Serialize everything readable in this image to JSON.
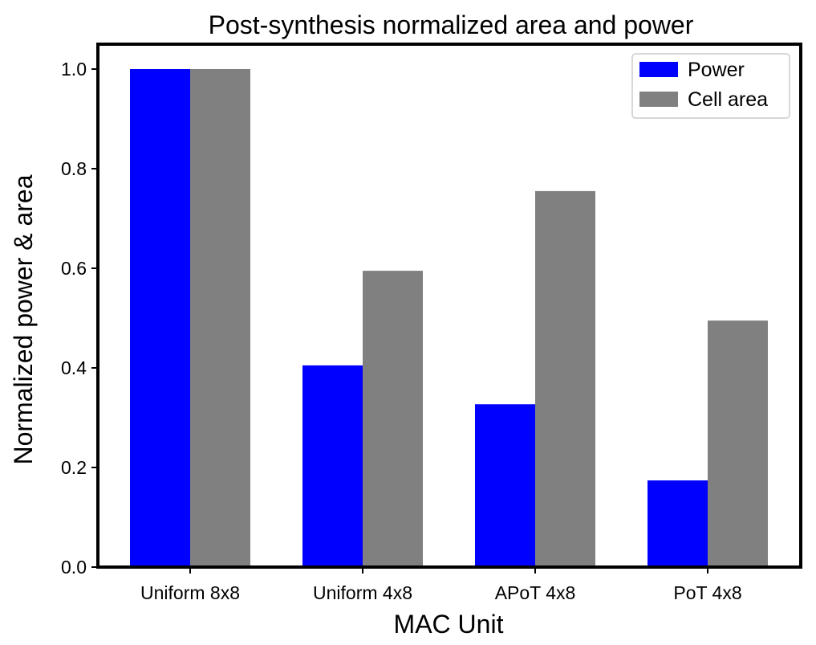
{
  "chart_data": {
    "type": "bar",
    "title": "Post-synthesis normalized area and power",
    "xlabel": "MAC Unit",
    "ylabel": "Normalized power & area",
    "categories": [
      "Uniform 8x8",
      "Uniform 4x8",
      "APoT 4x8",
      "PoT 4x8"
    ],
    "series": [
      {
        "name": "Power",
        "color": "#0000ff",
        "values": [
          1.0,
          0.405,
          0.327,
          0.174
        ]
      },
      {
        "name": "Cell area",
        "color": "#808080",
        "values": [
          1.0,
          0.595,
          0.755,
          0.495
        ]
      }
    ],
    "ylim": [
      0.0,
      1.05
    ],
    "yticks": [
      0.0,
      0.2,
      0.4,
      0.6,
      0.8,
      1.0
    ],
    "ytick_labels": [
      "0.0",
      "0.2",
      "0.4",
      "0.6",
      "0.8",
      "1.0"
    ],
    "grid": false,
    "legend_position": "top-right"
  }
}
